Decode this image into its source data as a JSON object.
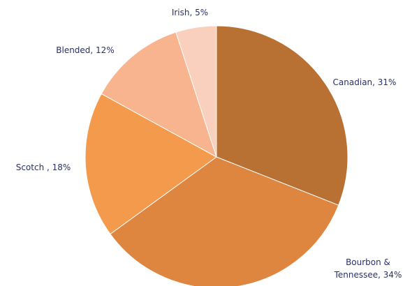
{
  "chart_data": {
    "type": "pie",
    "values": [
      31,
      34,
      18,
      12,
      5
    ],
    "value_labels": [
      "Canadian, 31%",
      "Bourbon & Tennessee, 34%",
      "Scotch , 18%",
      "Blended, 12%",
      "Irish, 5%"
    ],
    "colors": [
      "#b87033",
      "#de8540",
      "#f39a4c",
      "#f7b48e",
      "#f9cfbd"
    ]
  }
}
